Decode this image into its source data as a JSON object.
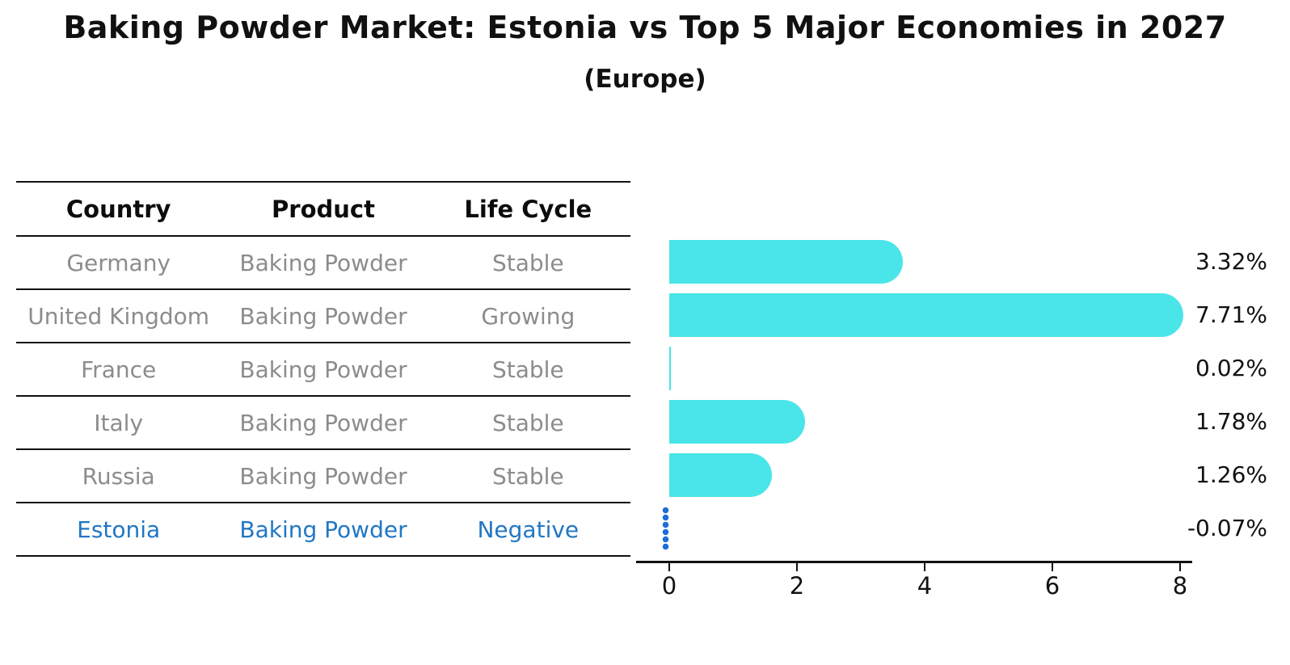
{
  "title": "Baking Powder Market: Estonia vs Top 5 Major Economies in 2027",
  "subtitle": "(Europe)",
  "table": {
    "headers": [
      "Country",
      "Product",
      "Life Cycle"
    ],
    "rows": [
      {
        "country": "Germany",
        "product": "Baking Powder",
        "life_cycle": "Stable",
        "highlight": false
      },
      {
        "country": "United Kingdom",
        "product": "Baking Powder",
        "life_cycle": "Growing",
        "highlight": false
      },
      {
        "country": "France",
        "product": "Baking Powder",
        "life_cycle": "Stable",
        "highlight": false
      },
      {
        "country": "Italy",
        "product": "Baking Powder",
        "life_cycle": "Stable",
        "highlight": false
      },
      {
        "country": "Russia",
        "product": "Baking Powder",
        "life_cycle": "Stable",
        "highlight": true
      }
    ],
    "rows_note": "last row below",
    "last_row": {
      "country": "Estonia",
      "product": "Baking Powder",
      "life_cycle": "Negative",
      "highlight": true
    }
  },
  "chart_data": {
    "type": "bar",
    "orientation": "horizontal",
    "categories": [
      "Germany",
      "United Kingdom",
      "France",
      "Italy",
      "Russia",
      "Estonia"
    ],
    "values": [
      3.32,
      7.71,
      0.02,
      1.78,
      1.26,
      -0.07
    ],
    "value_labels": [
      "3.32%",
      "7.71%",
      "0.02%",
      "1.78%",
      "1.26%",
      "-0.07%"
    ],
    "x_ticks": [
      "0",
      "2",
      "4",
      "6",
      "8"
    ],
    "x_tick_values": [
      0,
      2,
      4,
      6,
      8
    ],
    "xlim": [
      0,
      8
    ],
    "grid": false,
    "legend": false,
    "highlight_index": 5,
    "bar_color": "#4AE5E8",
    "highlight_dot_color": "#1B6FD8"
  },
  "colors": {
    "bar_cyan": "#4AE5E8",
    "estonia_blue_text": "#2177c4",
    "estonia_blue_dots": "#1B6FD8",
    "table_text_gray": "#8c8c8c",
    "ink": "#111111"
  }
}
